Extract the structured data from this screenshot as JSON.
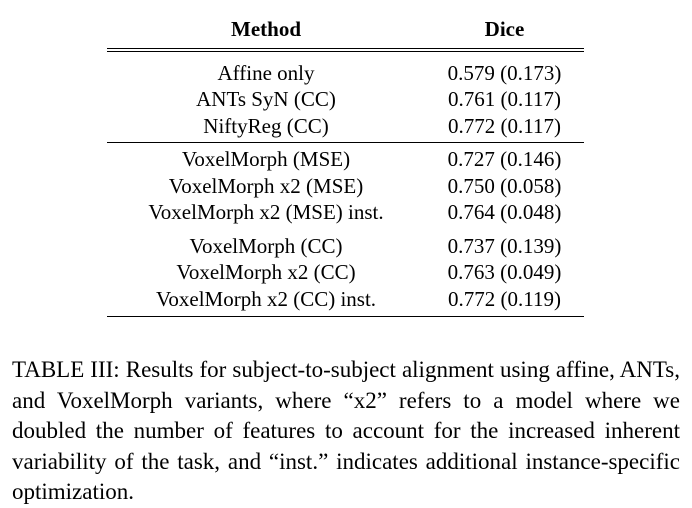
{
  "table": {
    "headers": [
      "Method",
      "Dice"
    ],
    "groups": [
      [
        {
          "method": "Affine only",
          "dice": "0.579 (0.173)"
        },
        {
          "method": "ANTs SyN (CC)",
          "dice": "0.761 (0.117)"
        },
        {
          "method": "NiftyReg (CC)",
          "dice": "0.772 (0.117)"
        }
      ],
      [
        {
          "method": "VoxelMorph (MSE)",
          "dice": "0.727 (0.146)"
        },
        {
          "method": "VoxelMorph x2 (MSE)",
          "dice": "0.750 (0.058)"
        },
        {
          "method": "VoxelMorph x2 (MSE) inst.",
          "dice": "0.764 (0.048)"
        }
      ],
      [
        {
          "method": "VoxelMorph (CC)",
          "dice": "0.737 (0.139)"
        },
        {
          "method": "VoxelMorph x2 (CC)",
          "dice": "0.763 (0.049)"
        },
        {
          "method": "VoxelMorph x2 (CC) inst.",
          "dice": "0.772 (0.119)"
        }
      ]
    ]
  },
  "caption": "TABLE III: Results for subject-to-subject alignment using affine, ANTs, and VoxelMorph variants, where “x2” refers to a model where we doubled the number of features to account for the increased inherent variability of the task, and “inst.” indicates additional instance-specific optimization."
}
